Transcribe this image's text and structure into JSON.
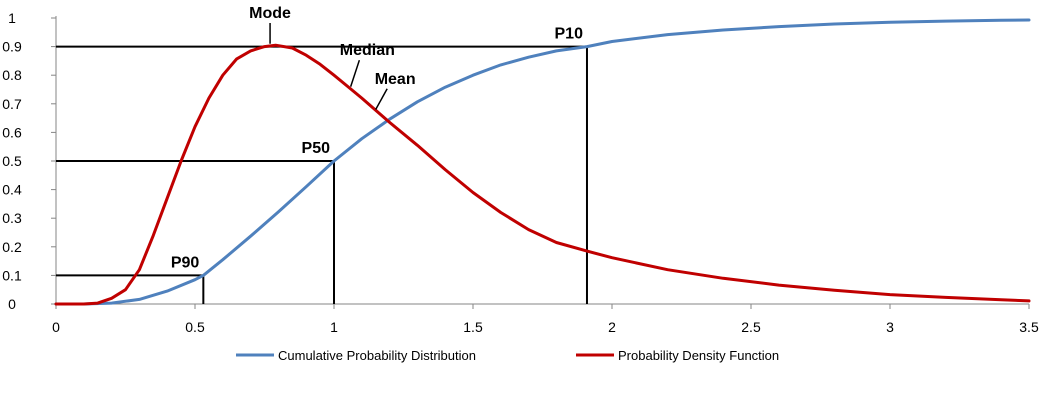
{
  "chart_data": {
    "type": "line",
    "title": "",
    "xlabel": "",
    "ylabel": "",
    "xlim": [
      0,
      3.5
    ],
    "ylim": [
      0,
      1
    ],
    "x_ticks": [
      "0",
      "0.5",
      "1",
      "1.5",
      "2",
      "2.5",
      "3",
      "3.5"
    ],
    "y_ticks": [
      "0",
      "0.1",
      "0.2",
      "0.3",
      "0.4",
      "0.5",
      "0.6",
      "0.7",
      "0.8",
      "0.9",
      "1"
    ],
    "grid": false,
    "legend_position": "bottom",
    "series": [
      {
        "name": "Cumulative Probability Distribution",
        "color": "#4F81BD",
        "x": [
          0,
          0.1,
          0.2,
          0.3,
          0.4,
          0.5,
          0.53,
          0.6,
          0.7,
          0.8,
          0.9,
          1.0,
          1.1,
          1.2,
          1.3,
          1.4,
          1.5,
          1.6,
          1.7,
          1.8,
          1.91,
          2.0,
          2.2,
          2.4,
          2.6,
          2.8,
          3.0,
          3.2,
          3.4,
          3.5
        ],
        "y": [
          0,
          0,
          0.003,
          0.016,
          0.045,
          0.085,
          0.1,
          0.155,
          0.237,
          0.322,
          0.41,
          0.5,
          0.578,
          0.646,
          0.707,
          0.758,
          0.8,
          0.836,
          0.863,
          0.885,
          0.9,
          0.918,
          0.942,
          0.958,
          0.97,
          0.979,
          0.985,
          0.989,
          0.992,
          0.993
        ]
      },
      {
        "name": "Probability Density Function",
        "color": "#C00000",
        "x": [
          0,
          0.1,
          0.15,
          0.2,
          0.25,
          0.3,
          0.35,
          0.4,
          0.45,
          0.5,
          0.55,
          0.6,
          0.65,
          0.7,
          0.75,
          0.79,
          0.85,
          0.9,
          0.95,
          1.0,
          1.05,
          1.1,
          1.2,
          1.3,
          1.4,
          1.5,
          1.6,
          1.7,
          1.8,
          1.91,
          2.0,
          2.2,
          2.4,
          2.6,
          2.8,
          3.0,
          3.2,
          3.4,
          3.5
        ],
        "y": [
          0,
          0,
          0.003,
          0.02,
          0.05,
          0.12,
          0.24,
          0.37,
          0.5,
          0.62,
          0.72,
          0.8,
          0.857,
          0.885,
          0.9,
          0.905,
          0.895,
          0.87,
          0.838,
          0.8,
          0.76,
          0.72,
          0.635,
          0.555,
          0.47,
          0.39,
          0.32,
          0.26,
          0.215,
          0.185,
          0.162,
          0.12,
          0.09,
          0.066,
          0.048,
          0.033,
          0.023,
          0.015,
          0.011
        ]
      }
    ],
    "reference_lines": [
      {
        "label": "P90",
        "x": 0.53,
        "y": 0.1
      },
      {
        "label": "P50",
        "x": 1.0,
        "y": 0.5
      },
      {
        "label": "P10",
        "x": 1.91,
        "y": 0.9
      }
    ],
    "annotations": [
      {
        "text": "Mode",
        "x": 0.77,
        "y": 1.0,
        "pointer": [
          0.77,
          0.91
        ]
      },
      {
        "text": "Median",
        "x": 1.12,
        "y": 0.87,
        "pointer": [
          1.06,
          0.76
        ]
      },
      {
        "text": "Mean",
        "x": 1.22,
        "y": 0.77,
        "pointer": [
          1.15,
          0.68
        ]
      }
    ]
  }
}
